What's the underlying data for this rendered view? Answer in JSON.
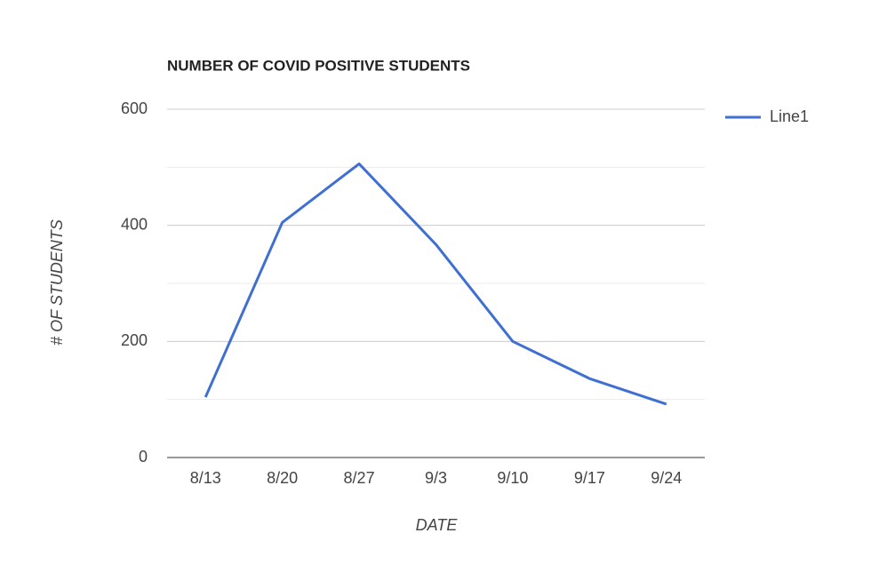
{
  "chart_data": {
    "type": "line",
    "title": "NUMBER OF COVID POSITIVE STUDENTS",
    "x_label": "DATE",
    "y_label": "# OF STUDENTS",
    "categories": [
      "8/13",
      "8/20",
      "8/27",
      "9/3",
      "9/10",
      "9/17",
      "9/24"
    ],
    "series": [
      {
        "name": "Line1",
        "color": "#3f6fd1",
        "values": [
          104,
          405,
          506,
          367,
          200,
          136,
          92
        ]
      }
    ],
    "ylim": [
      0,
      600
    ],
    "yticks": [
      0,
      200,
      400,
      600
    ],
    "minor_yticks": [
      100,
      300,
      500
    ],
    "grid": true,
    "legend": "right"
  }
}
